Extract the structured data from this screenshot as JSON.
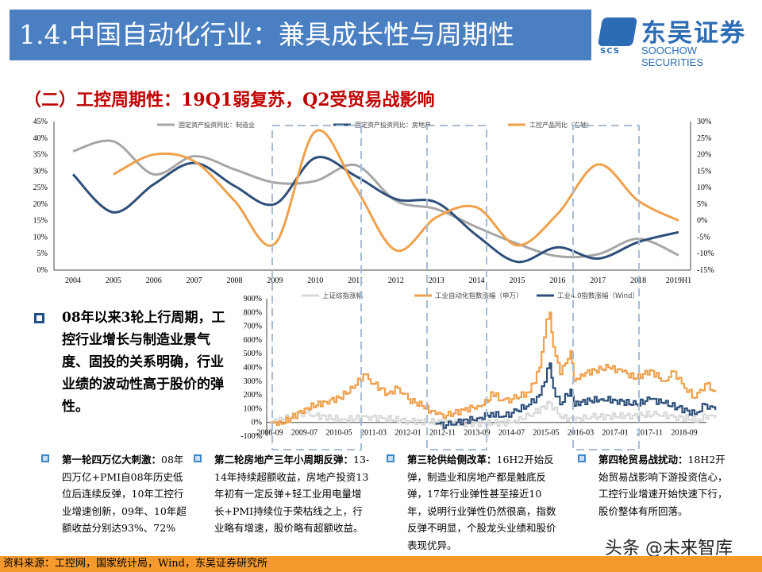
{
  "header": {
    "title": "1.4.中国自动化行业：兼具成长性与周期性",
    "logo_cn": "东吴证券",
    "logo_en": "SOOCHOW SECURITIES",
    "logo_mark": "SCS",
    "accent": "#4a7fc1"
  },
  "subtitle": "（二）工控周期性：19Q1弱复苏，Q2受贸易战影响",
  "chart_data": [
    {
      "type": "line",
      "categories": [
        "2004",
        "2005",
        "2006",
        "2007",
        "2008",
        "2009",
        "2010",
        "2011",
        "2012",
        "2013",
        "2014",
        "2015",
        "2016",
        "2017",
        "2018",
        "2019H1"
      ],
      "ylim": [
        0,
        45
      ],
      "yticks": [
        "0%",
        "5%",
        "10%",
        "15%",
        "20%",
        "25%",
        "30%",
        "35%",
        "40%",
        "45%"
      ],
      "y2lim": [
        -15,
        30
      ],
      "y2ticks": [
        "-15%",
        "-10%",
        "-5%",
        "0%",
        "5%",
        "10%",
        "15%",
        "20%",
        "25%",
        "30%"
      ],
      "legend": "top",
      "series": [
        {
          "name": "固定资产投资同比：制造业",
          "axis": "left",
          "color": "#a6a6a6",
          "values": [
            36,
            39,
            29,
            34.5,
            30.5,
            26.5,
            27,
            31.8,
            21,
            18.5,
            13,
            8,
            4.2,
            4.8,
            9.5,
            4.5
          ]
        },
        {
          "name": "固定资产投资同比：房地产",
          "axis": "left",
          "color": "#2e4f7a",
          "values": [
            29,
            17.5,
            26,
            32.5,
            25.5,
            20,
            34,
            28.5,
            21.5,
            20.5,
            10.5,
            2.5,
            6.9,
            3.5,
            8.5,
            11.5
          ]
        },
        {
          "name": "工控产品同比（右轴）",
          "axis": "right",
          "color": "#f0a04b",
          "values": [
            null,
            14,
            20,
            18,
            6,
            -7,
            27,
            10,
            -9,
            1,
            4,
            -7.5,
            2,
            17,
            6,
            0
          ]
        }
      ]
    },
    {
      "type": "line",
      "xticks": [
        "2008-09",
        "2009-07",
        "2010-05",
        "2011-03",
        "2012-01",
        "2012-11",
        "2013-09",
        "2014-07",
        "2015-05",
        "2016-03",
        "2017-01",
        "2017-11",
        "2018-09"
      ],
      "ylim": [
        -100,
        900
      ],
      "yticks": [
        "-100%",
        "0%",
        "100%",
        "200%",
        "300%",
        "400%",
        "500%",
        "600%",
        "700%",
        "800%",
        "900%"
      ],
      "legend": "top",
      "series": [
        {
          "name": "上证综指涨幅",
          "color": "#d9d9d9",
          "points": [
            [
              "2008-09",
              0
            ],
            [
              "2009-07",
              70
            ],
            [
              "2009-10",
              50
            ],
            [
              "2010-06",
              20
            ],
            [
              "2011-01",
              40
            ],
            [
              "2011-06",
              30
            ],
            [
              "2012-01",
              10
            ],
            [
              "2012-12",
              0
            ],
            [
              "2013-06",
              -10
            ],
            [
              "2014-07",
              0
            ],
            [
              "2014-12",
              50
            ],
            [
              "2015-06",
              140
            ],
            [
              "2015-09",
              40
            ],
            [
              "2016-01",
              20
            ],
            [
              "2016-06",
              40
            ],
            [
              "2017-06",
              50
            ],
            [
              "2018-01",
              60
            ],
            [
              "2018-06",
              40
            ],
            [
              "2019-01",
              20
            ],
            [
              "2019-04",
              50
            ],
            [
              "2019-06",
              30
            ]
          ]
        },
        {
          "name": "工业自动化指数涨幅（申万）",
          "color": "#f0a04b",
          "points": [
            [
              "2008-09",
              0
            ],
            [
              "2008-11",
              -20
            ],
            [
              "2009-03",
              30
            ],
            [
              "2009-07",
              100
            ],
            [
              "2010-01",
              150
            ],
            [
              "2010-05",
              180
            ],
            [
              "2010-09",
              250
            ],
            [
              "2010-12",
              350
            ],
            [
              "2011-03",
              280
            ],
            [
              "2011-07",
              210
            ],
            [
              "2011-10",
              250
            ],
            [
              "2012-01",
              170
            ],
            [
              "2012-05",
              120
            ],
            [
              "2012-09",
              60
            ],
            [
              "2012-12",
              50
            ],
            [
              "2013-05",
              90
            ],
            [
              "2013-09",
              120
            ],
            [
              "2013-12",
              150
            ],
            [
              "2014-01",
              220
            ],
            [
              "2014-04",
              160
            ],
            [
              "2014-07",
              170
            ],
            [
              "2014-12",
              220
            ],
            [
              "2015-03",
              400
            ],
            [
              "2015-05",
              750
            ],
            [
              "2015-06",
              800
            ],
            [
              "2015-07",
              550
            ],
            [
              "2015-09",
              350
            ],
            [
              "2015-12",
              520
            ],
            [
              "2016-01",
              300
            ],
            [
              "2016-03",
              350
            ],
            [
              "2016-07",
              380
            ],
            [
              "2016-11",
              400
            ],
            [
              "2017-03",
              370
            ],
            [
              "2017-07",
              320
            ],
            [
              "2017-11",
              380
            ],
            [
              "2018-03",
              300
            ],
            [
              "2018-06",
              370
            ],
            [
              "2018-09",
              250
            ],
            [
              "2018-12",
              180
            ],
            [
              "2019-03",
              280
            ],
            [
              "2019-06",
              220
            ]
          ]
        },
        {
          "name": "工业4.0指数涨幅（Wind）",
          "color": "#2e4f7a",
          "points": [
            [
              "2012-09",
              -10
            ],
            [
              "2012-12",
              -20
            ],
            [
              "2013-03",
              0
            ],
            [
              "2013-09",
              30
            ],
            [
              "2013-12",
              50
            ],
            [
              "2014-01",
              70
            ],
            [
              "2014-04",
              40
            ],
            [
              "2014-07",
              70
            ],
            [
              "2014-12",
              130
            ],
            [
              "2015-03",
              200
            ],
            [
              "2015-06",
              430
            ],
            [
              "2015-07",
              250
            ],
            [
              "2015-09",
              130
            ],
            [
              "2015-12",
              240
            ],
            [
              "2016-01",
              120
            ],
            [
              "2016-03",
              150
            ],
            [
              "2016-09",
              170
            ],
            [
              "2017-01",
              160
            ],
            [
              "2017-07",
              130
            ],
            [
              "2017-11",
              170
            ],
            [
              "2018-03",
              140
            ],
            [
              "2018-07",
              110
            ],
            [
              "2018-12",
              60
            ],
            [
              "2019-03",
              130
            ],
            [
              "2019-06",
              90
            ]
          ]
        }
      ]
    }
  ],
  "left_text": "08年以来3轮上行周期，工控行业增长与制造业景气度、固投的关系明确，行业业绩的波动性高于股价的弹性。",
  "columns": [
    {
      "head": "第一轮四万亿大刺激：",
      "body": "08年四万亿+PMI自08年历史低位后连续反弹，10年工控行业增速创新，09年、10年超额收益分别达93%、72%"
    },
    {
      "head": "第二轮房地产三年小周期反弹：",
      "body": "13-14年持续超额收益，房地产投资13年初有一定反弹+轻工业用电量增长+PMI持续位于荣枯线之上，行业略有增速，股价略有超额收益。"
    },
    {
      "head": "第三轮供给侧改革：",
      "body": "16H2开始反弹，制造业和房地产都是触底反弹，17年行业弹性甚至接近10年，说明行业弹性仍然很高，指数反弹不明显，个股龙头业绩和股价表现优异。"
    },
    {
      "head": "第四轮贸易战扰动：",
      "body": "18H2开始贸易战影响下游投资信心，工控行业增速开始快速下行，股价整体有所回落。"
    }
  ],
  "footer": "资料来源：工控网，国家统计局，Wind，东吴证券研究所",
  "watermark": "头条 @未来智库"
}
